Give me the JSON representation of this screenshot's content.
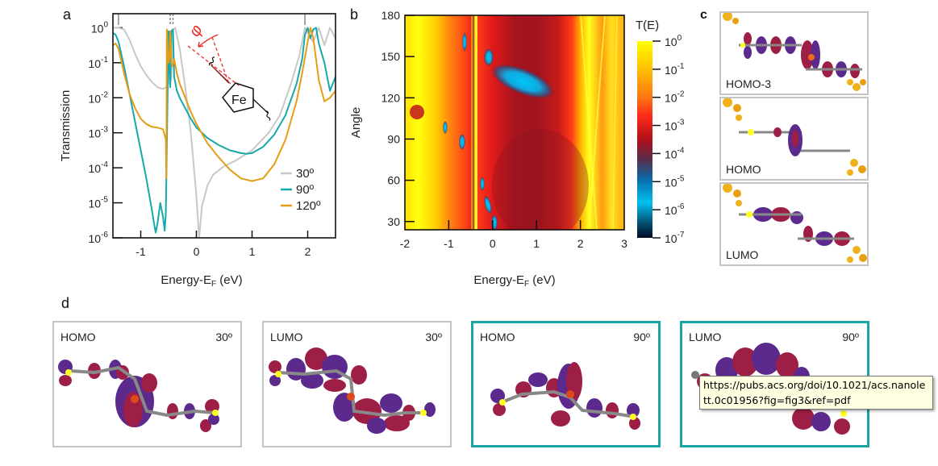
{
  "panels": {
    "a": "a",
    "b": "b",
    "c": "c",
    "d": "d"
  },
  "chart_data": [
    {
      "id": "a",
      "type": "line",
      "title": "",
      "xlabel": "Energy-E_F (eV)",
      "ylabel": "Transmission",
      "xlim": [
        -1.5,
        2.5
      ],
      "ylim_log10": [
        -6,
        0.4
      ],
      "yscale": "log",
      "xticks": [
        -1,
        0,
        1,
        2
      ],
      "xtick_labels": [
        "-1",
        "0",
        "1",
        "2"
      ],
      "yticks_log10": [
        0,
        -1,
        -2,
        -3,
        -4,
        -5,
        -6
      ],
      "ytick_labels": [
        "10^0",
        "10^-1",
        "10^-2",
        "10^-3",
        "10^-4",
        "10^-5",
        "10^-6"
      ],
      "legend": {
        "placement": "bottom-right",
        "entries": [
          "30º",
          "90º",
          "120º"
        ]
      },
      "top_markers_x": [
        -1.4,
        -0.47,
        -0.42,
        1.95
      ],
      "inset_label": "Fe",
      "inset_angle_symbol": "φ",
      "series": [
        {
          "name": "30º",
          "color": "#c8c8c8",
          "x": [
            -1.5,
            -1.4,
            -1.3,
            -1.2,
            -1.1,
            -1.0,
            -0.9,
            -0.8,
            -0.7,
            -0.6,
            -0.55,
            -0.5,
            -0.47,
            -0.45,
            -0.42,
            -0.38,
            -0.3,
            -0.2,
            -0.1,
            0.0,
            0.05,
            0.1,
            0.2,
            0.3,
            0.5,
            0.7,
            1.0,
            1.3,
            1.5,
            1.7,
            1.85,
            1.95,
            2.05,
            2.1,
            2.2,
            2.3,
            2.4,
            2.5
          ],
          "y": [
            0.0,
            0.0,
            -0.05,
            -0.35,
            -0.75,
            -1.1,
            -1.35,
            -1.55,
            -1.7,
            -1.75,
            -1.7,
            -1.6,
            -0.1,
            -1.5,
            -0.05,
            0.0,
            -0.6,
            -1.7,
            -3.0,
            -4.8,
            -6.0,
            -5.1,
            -4.5,
            -4.2,
            -3.95,
            -3.8,
            -3.5,
            -3.0,
            -2.5,
            -1.6,
            -0.8,
            0.0,
            -0.3,
            -0.4,
            0.0,
            -0.5,
            0.0,
            -0.3
          ]
        },
        {
          "name": "90º",
          "color": "#17a9a9",
          "x": [
            -1.5,
            -1.45,
            -1.4,
            -1.3,
            -1.2,
            -1.1,
            -1.0,
            -0.9,
            -0.8,
            -0.75,
            -0.73,
            -0.7,
            -0.65,
            -0.6,
            -0.57,
            -0.55,
            -0.5,
            -0.48,
            -0.47,
            -0.45,
            -0.42,
            -0.4,
            -0.35,
            -0.3,
            -0.2,
            -0.1,
            0.0,
            0.2,
            0.4,
            0.6,
            0.8,
            0.9,
            1.0,
            1.2,
            1.4,
            1.6,
            1.8,
            1.9,
            1.95,
            2.0,
            2.05,
            2.1,
            2.15,
            2.2,
            2.3,
            2.4,
            2.5
          ],
          "y": [
            -0.15,
            -0.2,
            -0.4,
            -1.1,
            -1.9,
            -2.7,
            -3.5,
            -4.3,
            -5.2,
            -5.7,
            -5.85,
            -5.6,
            -5.0,
            -5.4,
            -5.8,
            -5.3,
            -0.1,
            -1.3,
            -1.7,
            -0.1,
            -0.05,
            -1.4,
            -1.8,
            -2.0,
            -2.3,
            -2.6,
            -2.85,
            -3.15,
            -3.35,
            -3.5,
            -3.58,
            -3.6,
            -3.58,
            -3.4,
            -3.05,
            -2.5,
            -1.6,
            -0.9,
            -0.2,
            0.0,
            -0.3,
            -0.05,
            0.0,
            -0.45,
            -1.0,
            -1.8,
            -1.4
          ]
        },
        {
          "name": "120º",
          "color": "#e69c16",
          "x": [
            -1.5,
            -1.45,
            -1.4,
            -1.3,
            -1.2,
            -1.1,
            -1.0,
            -0.9,
            -0.8,
            -0.7,
            -0.6,
            -0.55,
            -0.54,
            -0.53,
            -0.5,
            -0.48,
            -0.47,
            -0.45,
            -0.43,
            -0.4,
            -0.35,
            -0.3,
            -0.2,
            -0.1,
            0.0,
            0.2,
            0.4,
            0.6,
            0.8,
            1.0,
            1.2,
            1.4,
            1.6,
            1.8,
            1.9,
            2.0,
            2.05,
            2.1,
            2.15,
            2.2,
            2.3,
            2.4,
            2.5
          ],
          "y": [
            -0.5,
            -0.45,
            -0.6,
            -1.3,
            -1.9,
            -2.3,
            -2.6,
            -2.75,
            -2.83,
            -2.85,
            -2.9,
            -3.2,
            -4.3,
            -0.05,
            -1.0,
            -0.8,
            -0.1,
            -1.0,
            -1.1,
            -0.9,
            -1.3,
            -1.6,
            -2.0,
            -2.4,
            -2.75,
            -3.3,
            -3.7,
            -4.05,
            -4.3,
            -4.38,
            -4.3,
            -3.9,
            -3.2,
            -2.1,
            -1.3,
            -0.4,
            0.0,
            -0.3,
            -0.9,
            -1.5,
            -2.1,
            -2.0,
            -1.8
          ]
        }
      ]
    },
    {
      "id": "b",
      "type": "heatmap",
      "title": "",
      "xlabel": "Energy-E_F (eV)",
      "ylabel": "Angle",
      "xlim": [
        -2,
        3
      ],
      "ylim": [
        24,
        180
      ],
      "xticks": [
        -2,
        -1,
        0,
        1,
        2,
        3
      ],
      "xtick_labels": [
        "-2",
        "-1",
        "0",
        "1",
        "2",
        "3"
      ],
      "yticks": [
        30,
        60,
        90,
        120,
        150,
        180
      ],
      "ytick_labels": [
        "30",
        "60",
        "90",
        "120",
        "150",
        "180"
      ],
      "colorbar": {
        "title": "T(E)",
        "scale": "log",
        "range_log10": [
          -7,
          0
        ],
        "tick_labels": [
          "10^0",
          "10^-1",
          "10^-2",
          "10^-3",
          "10^-4",
          "10^-5",
          "10^-6",
          "10^-7"
        ],
        "colors": [
          "#ffff00",
          "#ff9800",
          "#ff2a1a",
          "#b0101a",
          "#3a3a6a",
          "#0a6aa8",
          "#00c0f0",
          "#003050",
          "#000820"
        ]
      },
      "features": [
        {
          "kind": "high-T band",
          "x_range": [
            -2.0,
            -1.2
          ],
          "note": "yellow, T~10^0"
        },
        {
          "kind": "resonance line",
          "x": -0.5,
          "note": "sharp near-vertical stripe"
        },
        {
          "kind": "low-T island",
          "x": 0.9,
          "angle": 138,
          "log10T": -5.5
        },
        {
          "kind": "low-T streak",
          "x_range": [
            -0.2,
            0.1
          ],
          "angle_range": [
            24,
            65
          ],
          "log10T": -5.5
        },
        {
          "kind": "low-T spots",
          "points": [
            [
              -0.8,
              160
            ],
            [
              -0.7,
              98
            ],
            [
              -0.35,
              88
            ],
            [
              -0.5,
              155
            ]
          ]
        },
        {
          "kind": "high-T band",
          "x_range": [
            1.8,
            3.0
          ],
          "note": "yellow/orange crossing lines"
        }
      ]
    }
  ],
  "panel_c": {
    "items": [
      {
        "label": "HOMO-3"
      },
      {
        "label": "HOMO"
      },
      {
        "label": "LUMO"
      }
    ]
  },
  "panel_d": {
    "items": [
      {
        "label": "HOMO",
        "angle": "30º",
        "frame": "gray"
      },
      {
        "label": "LUMO",
        "angle": "30º",
        "frame": "gray"
      },
      {
        "label": "HOMO",
        "angle": "90º",
        "frame": "teal"
      },
      {
        "label": "LUMO",
        "angle": "90º",
        "frame": "teal"
      }
    ]
  },
  "tooltip": {
    "text": "https://pubs.acs.org/doi/10.1021/acs.nanolett.0c01956?fig=fig3&ref=pdf"
  },
  "colors": {
    "gray_curve": "#c8c8c8",
    "teal_curve": "#17a9a9",
    "orange_curve": "#e69c16",
    "frame_teal": "#1aa4a4",
    "frame_gray": "#c4c4c4",
    "orbital_purple": "#5b2a8c",
    "orbital_red": "#9e1f45",
    "gold_atoms": "#f0b21a"
  }
}
